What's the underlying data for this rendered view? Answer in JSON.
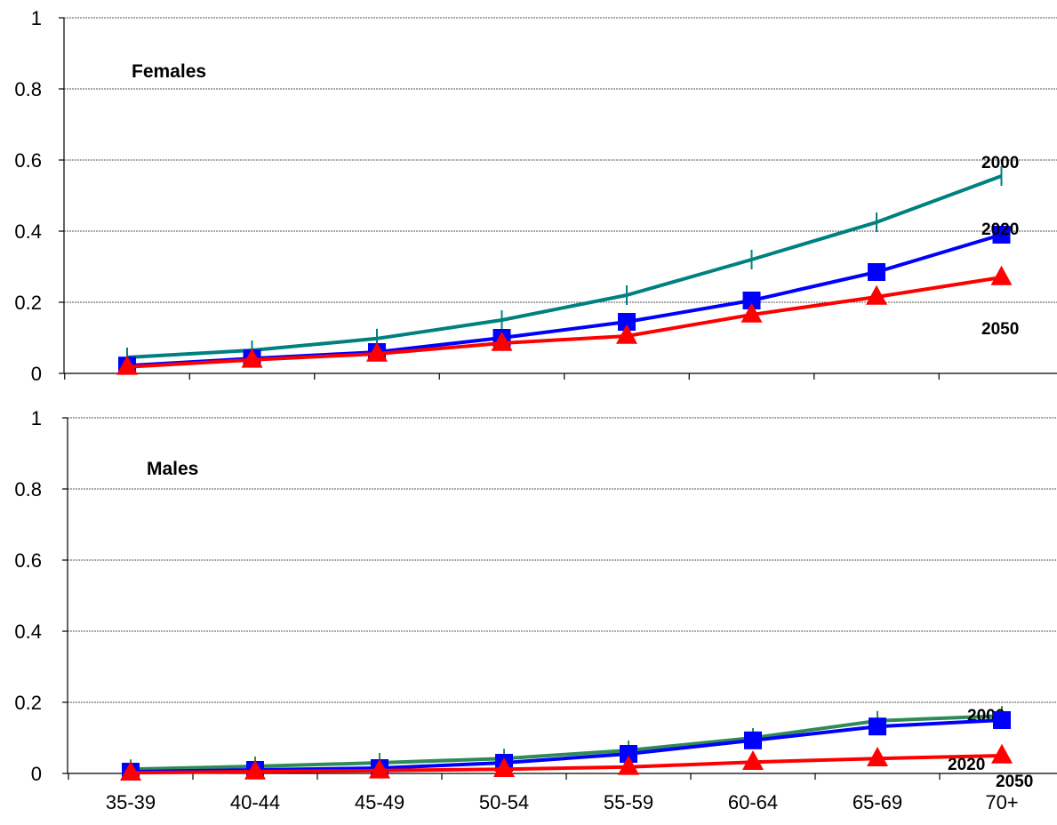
{
  "chart_data": [
    {
      "type": "line",
      "title": "Females",
      "categories": [
        "35-39",
        "40-44",
        "45-49",
        "50-54",
        "55-59",
        "60-64",
        "65-69",
        "70+"
      ],
      "show_x_tick_labels": false,
      "ylim": [
        0,
        1
      ],
      "yticks": [
        "0",
        "0.2",
        "0.4",
        "0.6",
        "0.8",
        "1"
      ],
      "grid": true,
      "series": [
        {
          "name": "2000",
          "color": "#008080",
          "marker": "tick",
          "values": [
            0.045,
            0.065,
            0.098,
            0.15,
            0.22,
            0.32,
            0.425,
            0.555
          ]
        },
        {
          "name": "2020",
          "color": "#0000FF",
          "marker": "square",
          "values": [
            0.022,
            0.042,
            0.06,
            0.1,
            0.145,
            0.205,
            0.285,
            0.39
          ]
        },
        {
          "name": "2050",
          "color": "#FF0000",
          "marker": "triangle",
          "values": [
            0.018,
            0.038,
            0.055,
            0.085,
            0.105,
            0.165,
            0.215,
            0.27
          ]
        }
      ]
    },
    {
      "type": "line",
      "title": "Males",
      "categories": [
        "35-39",
        "40-44",
        "45-49",
        "50-54",
        "55-59",
        "60-64",
        "65-69",
        "70+"
      ],
      "show_x_tick_labels": true,
      "ylim": [
        0,
        1
      ],
      "yticks": [
        "0",
        "0.2",
        "0.4",
        "0.6",
        "0.8",
        "1"
      ],
      "grid": true,
      "series": [
        {
          "name": "2000",
          "color": "#2E8B57",
          "marker": "tick",
          "values": [
            0.012,
            0.02,
            0.03,
            0.042,
            0.065,
            0.1,
            0.148,
            0.162
          ]
        },
        {
          "name": "2020",
          "color": "#0000FF",
          "marker": "square",
          "values": [
            0.005,
            0.01,
            0.015,
            0.03,
            0.055,
            0.093,
            0.132,
            0.15
          ]
        },
        {
          "name": "2050",
          "color": "#FF0000",
          "marker": "triangle",
          "values": [
            0.002,
            0.005,
            0.008,
            0.012,
            0.018,
            0.032,
            0.042,
            0.05
          ]
        }
      ]
    }
  ]
}
